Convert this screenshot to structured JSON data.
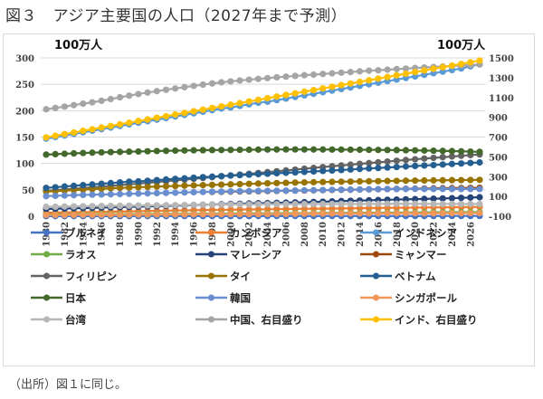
{
  "figure": {
    "title": "図３　アジア主要国の人口（2027年まで予測）",
    "source_note": "（出所）図１に同じ。"
  },
  "chart_data": {
    "type": "line",
    "title": "図３　アジア主要国の人口（2027年まで予測）",
    "xlabel": "",
    "ylabel_left": "100万人",
    "ylabel_right": "100万人",
    "ylim_left": [
      0,
      300
    ],
    "yticks_left": [
      0,
      50,
      100,
      150,
      200,
      250,
      300
    ],
    "ylim_right": [
      -100,
      1500
    ],
    "yticks_right": [
      -100,
      100,
      300,
      500,
      700,
      900,
      1100,
      1300,
      1500
    ],
    "x": [
      1980,
      1981,
      1982,
      1983,
      1984,
      1985,
      1986,
      1987,
      1988,
      1989,
      1990,
      1991,
      1992,
      1993,
      1994,
      1995,
      1996,
      1997,
      1998,
      1999,
      2000,
      2001,
      2002,
      2003,
      2004,
      2005,
      2006,
      2007,
      2008,
      2009,
      2010,
      2011,
      2012,
      2013,
      2014,
      2015,
      2016,
      2017,
      2018,
      2019,
      2020,
      2021,
      2022,
      2023,
      2024,
      2025,
      2026,
      2027
    ],
    "xtick_labels": [
      "1980",
      "1982",
      "1984",
      "1986",
      "1988",
      "1990",
      "1992",
      "1994",
      "1996",
      "1998",
      "2000",
      "2002",
      "2004",
      "2006",
      "2008",
      "2010",
      "2012",
      "2014",
      "2016",
      "2018",
      "2020",
      "2022",
      "2024",
      "2026"
    ],
    "grid": true,
    "legend_position": "bottom",
    "series": [
      {
        "name": "ブルネイ",
        "color": "#4472c4",
        "axis": "left",
        "values": [
          0.2,
          0.2,
          0.2,
          0.2,
          0.2,
          0.2,
          0.2,
          0.2,
          0.2,
          0.2,
          0.3,
          0.3,
          0.3,
          0.3,
          0.3,
          0.3,
          0.3,
          0.3,
          0.3,
          0.3,
          0.3,
          0.3,
          0.3,
          0.4,
          0.4,
          0.4,
          0.4,
          0.4,
          0.4,
          0.4,
          0.4,
          0.4,
          0.4,
          0.4,
          0.4,
          0.4,
          0.4,
          0.4,
          0.4,
          0.4,
          0.4,
          0.4,
          0.4,
          0.5,
          0.5,
          0.5,
          0.5,
          0.5
        ]
      },
      {
        "name": "カンボジア",
        "color": "#ed7d31",
        "axis": "left",
        "values": [
          6.6,
          6.8,
          7.1,
          7.4,
          7.7,
          8.0,
          8.3,
          8.6,
          8.9,
          9.2,
          9.5,
          9.8,
          10.2,
          10.5,
          10.8,
          11.1,
          11.4,
          11.6,
          11.9,
          12.1,
          12.3,
          12.6,
          12.8,
          13.0,
          13.2,
          13.4,
          13.6,
          13.8,
          14.0,
          14.2,
          14.4,
          14.6,
          14.8,
          15.0,
          15.2,
          15.4,
          15.6,
          15.8,
          16.0,
          16.2,
          16.4,
          16.6,
          16.8,
          16.9,
          17.1,
          17.2,
          17.4,
          17.5
        ]
      },
      {
        "name": "インドネシア",
        "color": "#5b9bd5",
        "axis": "left",
        "values": [
          147,
          150,
          153,
          156,
          159,
          162,
          165,
          168,
          171,
          174,
          177,
          180,
          183,
          186,
          189,
          192,
          195,
          198,
          201,
          204,
          206,
          209,
          212,
          215,
          217,
          220,
          223,
          226,
          229,
          232,
          235,
          238,
          241,
          244,
          247,
          250,
          253,
          256,
          259,
          262,
          265,
          268,
          271,
          274,
          277,
          280,
          284,
          288
        ]
      },
      {
        "name": "ラオス",
        "color": "#70ad47",
        "axis": "left",
        "values": [
          3.2,
          3.3,
          3.4,
          3.5,
          3.6,
          3.7,
          3.8,
          3.9,
          4.0,
          4.1,
          4.2,
          4.3,
          4.4,
          4.5,
          4.6,
          4.7,
          4.8,
          4.9,
          5.0,
          5.1,
          5.2,
          5.3,
          5.4,
          5.5,
          5.6,
          5.7,
          5.8,
          5.9,
          6.0,
          6.1,
          6.2,
          6.3,
          6.4,
          6.5,
          6.6,
          6.7,
          6.8,
          6.9,
          7.0,
          7.1,
          7.2,
          7.3,
          7.4,
          7.5,
          7.6,
          7.7,
          7.8,
          7.8
        ]
      },
      {
        "name": "マレーシア",
        "color": "#264478",
        "axis": "left",
        "values": [
          13.8,
          14.2,
          14.6,
          15.0,
          15.5,
          15.9,
          16.4,
          16.8,
          17.2,
          17.7,
          18.1,
          18.6,
          19.1,
          19.6,
          20.1,
          20.6,
          21.2,
          21.7,
          22.2,
          22.7,
          23.2,
          23.7,
          24.2,
          24.6,
          25.0,
          25.4,
          25.8,
          26.2,
          26.6,
          27.1,
          27.5,
          28.2,
          28.7,
          29.2,
          29.7,
          30.2,
          30.7,
          31.2,
          31.6,
          32.0,
          32.4,
          32.8,
          33.2,
          33.7,
          34.2,
          34.8,
          35.4,
          36.0
        ]
      },
      {
        "name": "ミャンマー",
        "color": "#9e480e",
        "axis": "left",
        "values": [
          null,
          null,
          null,
          null,
          null,
          null,
          null,
          null,
          null,
          null,
          null,
          null,
          null,
          null,
          null,
          null,
          null,
          null,
          46.0,
          46.2,
          46.5,
          46.8,
          47.0,
          47.3,
          47.6,
          47.9,
          48.2,
          48.5,
          48.8,
          49.1,
          49.4,
          49.7,
          50.0,
          50.3,
          50.6,
          50.9,
          51.2,
          51.5,
          51.8,
          52.1,
          52.4,
          52.6,
          52.9,
          53.1,
          53.3,
          53.5,
          53.7,
          53.9
        ]
      },
      {
        "name": "フィリピン",
        "color": "#636363",
        "axis": "left",
        "values": [
          48.1,
          49.4,
          50.7,
          52.0,
          53.3,
          54.7,
          56.1,
          57.5,
          58.9,
          60.3,
          61.8,
          63.3,
          64.8,
          66.3,
          67.8,
          69.3,
          70.9,
          72.5,
          74.1,
          75.7,
          77.3,
          78.9,
          80.5,
          82.0,
          83.6,
          85.2,
          86.8,
          88.4,
          90.0,
          91.6,
          93.1,
          94.7,
          96.2,
          97.7,
          99.2,
          100.7,
          102.2,
          103.6,
          105.1,
          106.5,
          107.9,
          109.3,
          110.6,
          111.9,
          113.2,
          114.5,
          115.8,
          117.0
        ]
      },
      {
        "name": "タイ",
        "color": "#997300",
        "axis": "left",
        "values": [
          46.7,
          47.7,
          48.6,
          49.5,
          50.4,
          51.3,
          52.1,
          52.9,
          53.6,
          54.3,
          55.0,
          55.6,
          56.2,
          56.8,
          57.3,
          57.9,
          58.4,
          58.9,
          59.4,
          59.9,
          60.4,
          60.9,
          61.4,
          61.9,
          62.4,
          62.9,
          63.3,
          63.7,
          64.1,
          64.5,
          64.8,
          65.1,
          65.4,
          65.7,
          66.0,
          66.3,
          66.5,
          66.8,
          67.0,
          67.3,
          67.5,
          67.7,
          67.9,
          68.1,
          68.3,
          68.5,
          68.7,
          68.9
        ]
      },
      {
        "name": "ベトナム",
        "color": "#255e91",
        "axis": "left",
        "values": [
          53.7,
          55.0,
          56.3,
          57.6,
          58.9,
          60.2,
          61.5,
          62.8,
          64.1,
          65.4,
          66.0,
          67.2,
          68.5,
          69.6,
          70.8,
          71.9,
          73.0,
          74.0,
          75.0,
          76.0,
          77.0,
          77.9,
          78.8,
          79.7,
          80.5,
          81.4,
          82.3,
          83.1,
          84.0,
          84.9,
          85.8,
          86.7,
          87.6,
          88.6,
          89.6,
          90.5,
          91.4,
          92.3,
          93.3,
          94.3,
          95.2,
          96.1,
          97.0,
          98.0,
          99.0,
          100.0,
          101.0,
          102.0
        ]
      },
      {
        "name": "日本",
        "color": "#43682b",
        "axis": "left",
        "values": [
          116.8,
          117.6,
          118.4,
          119.1,
          119.8,
          120.4,
          121.0,
          121.5,
          121.9,
          122.3,
          122.7,
          123.1,
          123.5,
          123.9,
          124.3,
          124.6,
          124.9,
          125.1,
          125.3,
          125.5,
          125.7,
          125.9,
          126.0,
          126.2,
          126.3,
          126.4,
          126.5,
          126.5,
          126.5,
          126.4,
          126.4,
          126.3,
          126.2,
          126.1,
          126.0,
          125.9,
          125.7,
          125.5,
          125.3,
          125.1,
          124.8,
          124.5,
          124.2,
          123.8,
          123.4,
          123.0,
          122.5,
          122.0
        ]
      },
      {
        "name": "韓国",
        "color": "#698ed0",
        "axis": "left",
        "values": [
          38.1,
          38.7,
          39.3,
          39.9,
          40.4,
          40.8,
          41.2,
          41.6,
          42.0,
          42.4,
          42.9,
          43.3,
          43.7,
          44.2,
          44.6,
          45.1,
          45.5,
          46.0,
          46.3,
          46.6,
          47.0,
          47.4,
          47.6,
          47.9,
          48.1,
          48.2,
          48.4,
          48.6,
          49.1,
          49.3,
          49.6,
          49.9,
          50.2,
          50.4,
          50.7,
          51.0,
          51.2,
          51.4,
          51.6,
          51.7,
          51.8,
          51.7,
          51.7,
          51.7,
          51.7,
          51.6,
          51.6,
          51.5
        ]
      },
      {
        "name": "シンガポール",
        "color": "#f1975a",
        "axis": "left",
        "values": [
          2.4,
          2.5,
          2.5,
          2.6,
          2.7,
          2.7,
          2.7,
          2.8,
          2.8,
          2.9,
          3.0,
          3.1,
          3.2,
          3.3,
          3.4,
          3.5,
          3.7,
          3.8,
          3.9,
          3.9,
          4.0,
          4.1,
          4.2,
          4.1,
          4.2,
          4.3,
          4.4,
          4.6,
          4.8,
          5.0,
          5.1,
          5.2,
          5.3,
          5.4,
          5.5,
          5.5,
          5.6,
          5.6,
          5.6,
          5.7,
          5.7,
          5.5,
          5.6,
          5.7,
          5.8,
          5.8,
          5.9,
          5.9
        ]
      },
      {
        "name": "台湾",
        "color": "#b7b7b7",
        "axis": "left",
        "values": [
          17.8,
          18.1,
          18.4,
          18.7,
          19.0,
          19.2,
          19.4,
          19.6,
          19.8,
          20.0,
          20.3,
          20.5,
          20.7,
          20.9,
          21.1,
          21.3,
          21.5,
          21.7,
          21.9,
          22.0,
          22.2,
          22.3,
          22.5,
          22.6,
          22.7,
          22.8,
          22.9,
          23.0,
          23.0,
          23.1,
          23.1,
          23.2,
          23.3,
          23.3,
          23.4,
          23.5,
          23.5,
          23.6,
          23.6,
          23.6,
          23.6,
          23.4,
          23.3,
          23.3,
          23.3,
          23.2,
          23.2,
          23.1
        ]
      },
      {
        "name": "中国、右目盛り",
        "color": "#a5a5a5",
        "axis": "right",
        "values": [
          981,
          994,
          1008,
          1023,
          1037,
          1051,
          1067,
          1084,
          1102,
          1119,
          1135,
          1150,
          1164,
          1178,
          1191,
          1204,
          1217,
          1230,
          1242,
          1253,
          1263,
          1272,
          1280,
          1288,
          1296,
          1304,
          1311,
          1318,
          1325,
          1331,
          1338,
          1344,
          1351,
          1357,
          1364,
          1371,
          1375,
          1381,
          1387,
          1392,
          1398,
          1403,
          1408,
          1413,
          1418,
          1423,
          1428,
          1433
        ]
      },
      {
        "name": "インド、右目盛り",
        "color": "#ffc000",
        "axis": "right",
        "values": [
          697,
          713,
          730,
          746,
          763,
          779,
          796,
          812,
          829,
          845,
          862,
          878,
          895,
          911,
          928,
          944,
          961,
          977,
          994,
          1010,
          1027,
          1043,
          1060,
          1076,
          1093,
          1109,
          1126,
          1142,
          1159,
          1175,
          1192,
          1208,
          1225,
          1241,
          1258,
          1274,
          1291,
          1307,
          1324,
          1340,
          1357,
          1373,
          1390,
          1406,
          1423,
          1439,
          1456,
          1473
        ]
      }
    ],
    "legend_order": [
      0,
      1,
      2,
      3,
      4,
      5,
      6,
      7,
      8,
      9,
      10,
      11,
      12,
      13,
      14
    ]
  }
}
